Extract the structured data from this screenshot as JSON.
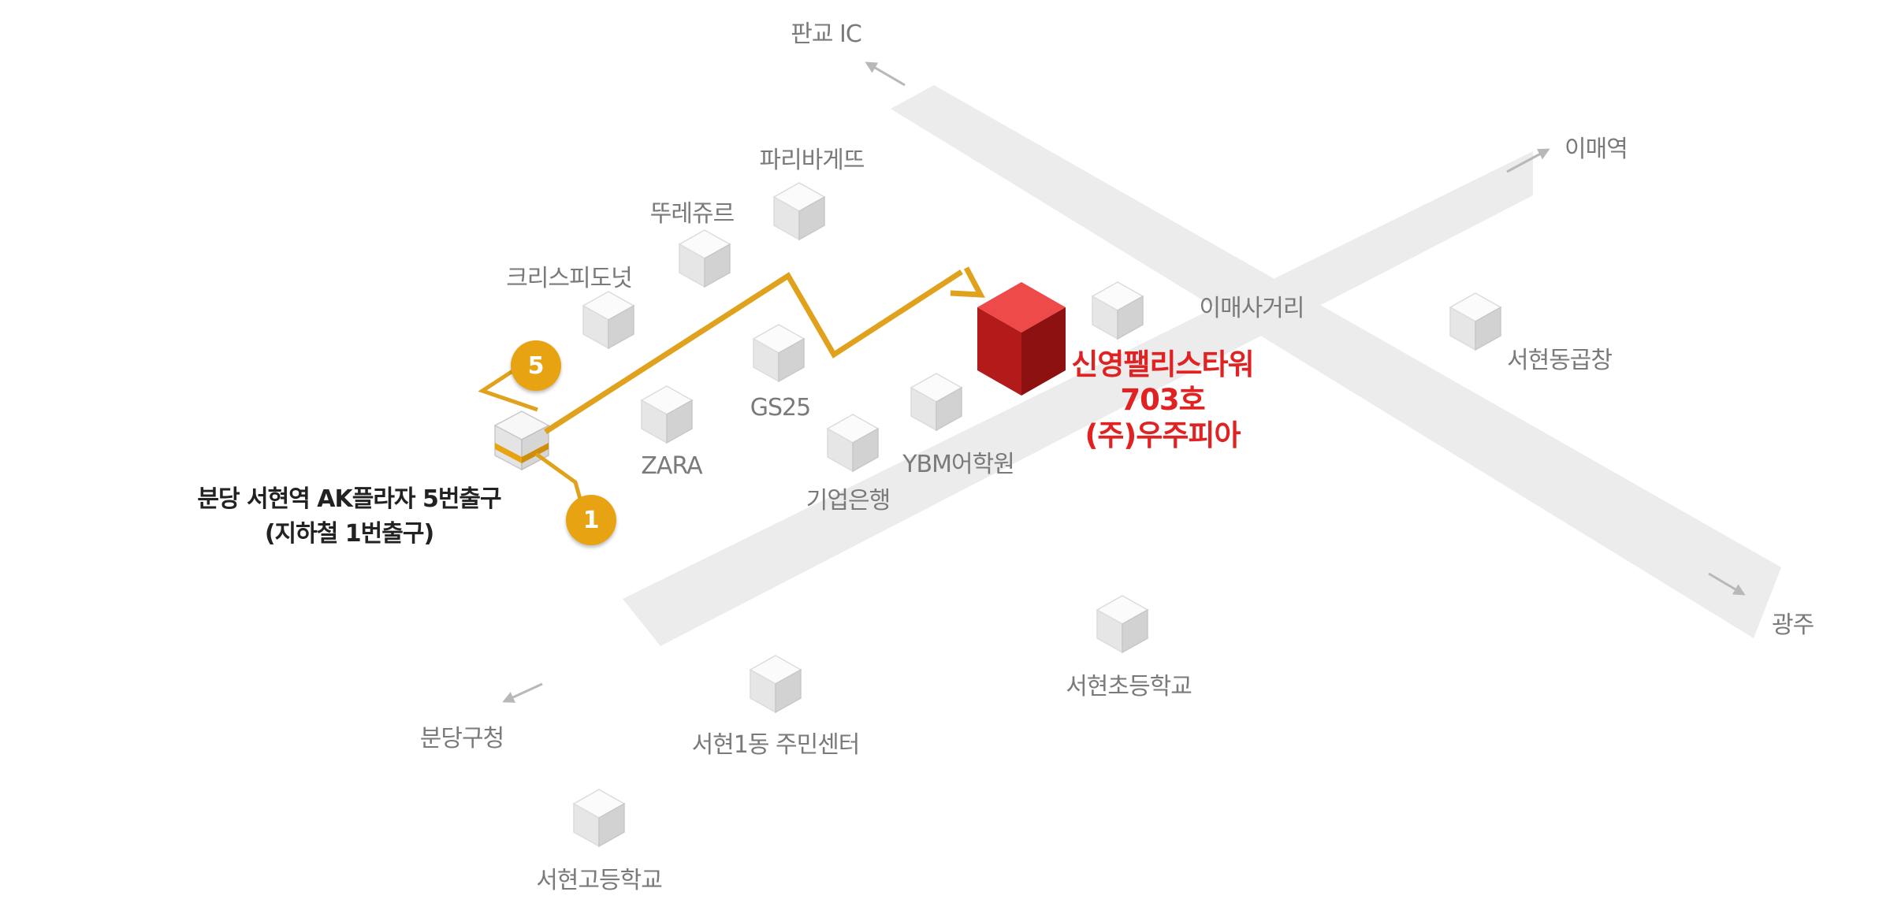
{
  "destination": {
    "name": "신영팰리스타워",
    "room": "703호",
    "company": "(주)우주피아",
    "color": "#e02222"
  },
  "station": {
    "line1": "분당 서현역 AK플라자 5번출구",
    "line2": "(지하철 1번출구)"
  },
  "exits": {
    "exit5": "5",
    "exit1": "1",
    "color": "#e8a312"
  },
  "directions": {
    "north": "판교 IC",
    "east": "이매역",
    "southeast": "광주",
    "southwest": "분당구청"
  },
  "landmarks": {
    "paris_baguette": "파리바게뜨",
    "tous_les_jours": "뚜레쥬르",
    "krispy_kreme": "크리스피도넛",
    "gs25": "GS25",
    "zara": "ZARA",
    "ibk": "기업은행",
    "ybm": "YBM어학원",
    "imae_crossroad": "이매사거리",
    "seohyeon_gopchang": "서현동곱창",
    "seohyeon_elementary": "서현초등학교",
    "seohyeon1_center": "서현1동 주민센터",
    "seohyeon_high": "서현고등학교"
  },
  "route_color": "#e0a21c",
  "road_color": "#ececec"
}
